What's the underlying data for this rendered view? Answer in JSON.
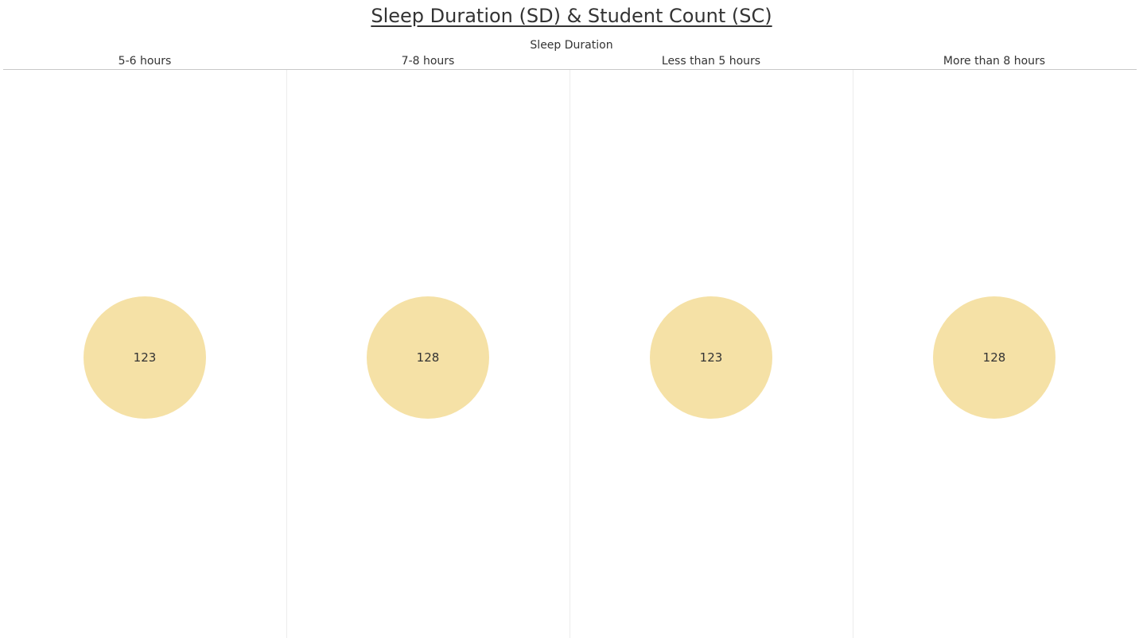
{
  "chart_data": {
    "type": "bubble",
    "title": "Sleep Duration (SD) & Student Count (SC)",
    "column_header": "Sleep Duration",
    "categories": [
      "5-6 hours",
      "7-8 hours",
      "Less than 5 hours",
      "More than 8 hours"
    ],
    "values": [
      123,
      128,
      123,
      128
    ],
    "colors": {
      "bubble": "#f5e1a6",
      "text": "#333333",
      "divider": "#ececec"
    }
  }
}
